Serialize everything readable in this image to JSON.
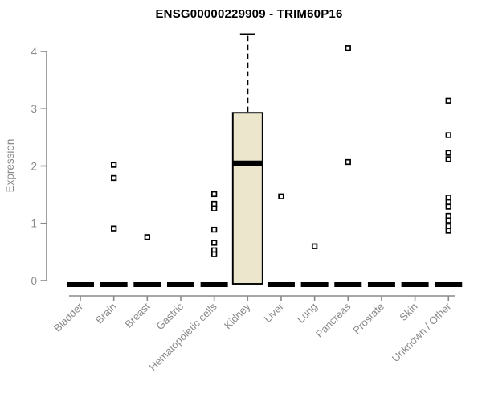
{
  "chart_data": {
    "type": "boxplot",
    "title": "ENSG00000229909 - TRIM60P16",
    "ylabel": "Expression",
    "xlabel": "",
    "ylim": [
      0,
      4.35
    ],
    "yticks": [
      0,
      1,
      2,
      3,
      4
    ],
    "grid": false,
    "legend": "none",
    "categories": [
      "Bladder",
      "Brain",
      "Breast",
      "Gastric",
      "Hematopoietic cells",
      "Kidney",
      "Liver",
      "Lung",
      "Pancreas",
      "Prostate",
      "Skin",
      "Unknown / Other"
    ],
    "boxes": [
      {
        "category": "Bladder",
        "q1": 0,
        "median": 0,
        "q3": 0,
        "whisker_low": 0,
        "whisker_high": 0,
        "outliers": []
      },
      {
        "category": "Brain",
        "q1": 0,
        "median": 0,
        "q3": 0,
        "whisker_low": 0,
        "whisker_high": 0,
        "outliers": [
          2.02,
          1.79,
          0.91
        ]
      },
      {
        "category": "Breast",
        "q1": 0,
        "median": 0,
        "q3": 0,
        "whisker_low": 0,
        "whisker_high": 0,
        "outliers": [
          0.76
        ]
      },
      {
        "category": "Gastric",
        "q1": 0,
        "median": 0,
        "q3": 0,
        "whisker_low": 0,
        "whisker_high": 0,
        "outliers": []
      },
      {
        "category": "Hematopoietic cells",
        "q1": 0,
        "median": 0,
        "q3": 0,
        "whisker_low": 0,
        "whisker_high": 0,
        "outliers": [
          1.51,
          1.34,
          1.26,
          0.89,
          0.66,
          0.53,
          0.46
        ]
      },
      {
        "category": "Kidney",
        "q1": 0,
        "median": 2.05,
        "q3": 2.93,
        "whisker_low": 0,
        "whisker_high": 4.3,
        "outliers": []
      },
      {
        "category": "Liver",
        "q1": 0,
        "median": 0,
        "q3": 0,
        "whisker_low": 0,
        "whisker_high": 0,
        "outliers": [
          1.47
        ]
      },
      {
        "category": "Lung",
        "q1": 0,
        "median": 0,
        "q3": 0,
        "whisker_low": 0,
        "whisker_high": 0,
        "outliers": [
          0.6
        ]
      },
      {
        "category": "Pancreas",
        "q1": 0,
        "median": 0,
        "q3": 0,
        "whisker_low": 0,
        "whisker_high": 0,
        "outliers": [
          4.06,
          2.07
        ]
      },
      {
        "category": "Prostate",
        "q1": 0,
        "median": 0,
        "q3": 0,
        "whisker_low": 0,
        "whisker_high": 0,
        "outliers": []
      },
      {
        "category": "Skin",
        "q1": 0,
        "median": 0,
        "q3": 0,
        "whisker_low": 0,
        "whisker_high": 0,
        "outliers": []
      },
      {
        "category": "Unknown / Other",
        "q1": 0,
        "median": 0,
        "q3": 0,
        "whisker_low": 0,
        "whisker_high": 0,
        "outliers": [
          3.14,
          2.54,
          2.23,
          2.12,
          1.45,
          1.37,
          1.29,
          1.13,
          1.05,
          0.95,
          0.87
        ]
      }
    ],
    "colors": {
      "box_fill": "#ece6cd",
      "box_border": "#000000",
      "median": "#000000",
      "whisker": "#000000",
      "axis": "#8a8a8a",
      "tick_label": "#8a8a8a",
      "title": "#000000",
      "outlier_fill": "#ffffff",
      "outlier_border": "#000000",
      "background": "#ffffff"
    }
  }
}
